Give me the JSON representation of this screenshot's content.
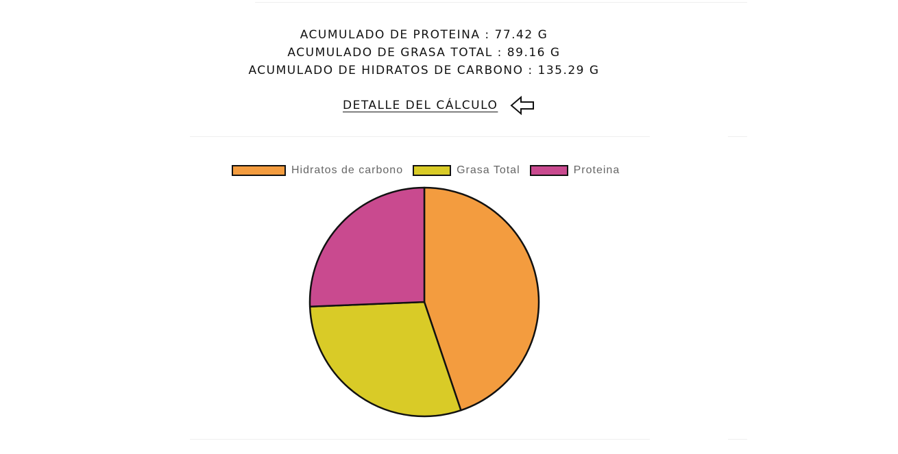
{
  "summary": {
    "protein_line": "ACUMULADO DE PROTEINA : 77.42 G",
    "fat_line": "ACUMULADO DE GRASA TOTAL : 89.16 G",
    "carbs_line": "ACUMULADO DE HIDRATOS DE CARBONO : 135.29 G"
  },
  "detail_link": {
    "label": "DETALLE DEL CÁLCULO",
    "icon": "arrow-left-icon"
  },
  "chart_data": {
    "type": "pie",
    "title": "",
    "legend_position": "top",
    "categories": [
      "Hidratos de carbono",
      "Grasa Total",
      "Proteina"
    ],
    "values": [
      135.29,
      89.16,
      77.42
    ],
    "unit": "G",
    "colors": [
      "#f39c3f",
      "#d9cb27",
      "#c94a8f"
    ],
    "border_color": "#111111"
  }
}
